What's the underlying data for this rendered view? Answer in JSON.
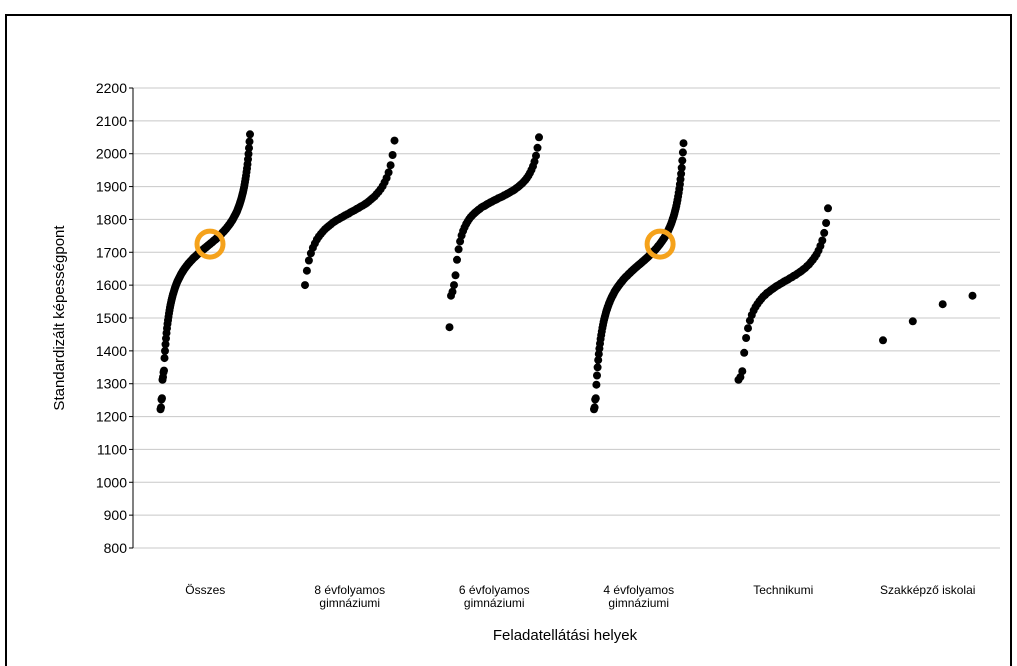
{
  "partial_title": "",
  "chart_data": {
    "type": "scatter",
    "title": "",
    "xlabel": "Feladatellátási helyek",
    "ylabel": "Standardizált képességpont",
    "ylim": [
      800,
      2200
    ],
    "yticks": [
      800,
      900,
      1000,
      1100,
      1200,
      1300,
      1400,
      1500,
      1600,
      1700,
      1800,
      1900,
      2000,
      2100,
      2200
    ],
    "grid": true,
    "highlight_color": "#F5A21B",
    "point_color": "#000000",
    "categories": [
      {
        "label_lines": [
          "Összes"
        ]
      },
      {
        "label_lines": [
          "8 évfolyamos",
          "gimnáziumi"
        ]
      },
      {
        "label_lines": [
          "6 évfolyamos",
          "gimnáziumi"
        ]
      },
      {
        "label_lines": [
          "4 évfolyamos",
          "gimnáziumi"
        ]
      },
      {
        "label_lines": [
          "Technikumi"
        ]
      },
      {
        "label_lines": [
          "Szakképző iskolai"
        ]
      }
    ],
    "series": [
      {
        "category": "Összes",
        "count": 180,
        "min": 1222,
        "max": 2072,
        "low_outliers": [
          1222,
          1228,
          1252,
          1256,
          1312,
          1320,
          1335,
          1340
        ],
        "highlight_value": 1725
      },
      {
        "category": "8 évfolyamos gimnáziumi",
        "count": 46,
        "min": 1570,
        "max": 2070
      },
      {
        "category": "6 évfolyamos gimnáziumi",
        "count": 60,
        "min": 1472,
        "max": 2072,
        "low_outliers": [
          1472,
          1568,
          1580,
          1600,
          1630
        ]
      },
      {
        "category": "4 évfolyamos gimnáziumi",
        "count": 150,
        "min": 1222,
        "max": 2048,
        "low_outliers": [
          1222,
          1228,
          1252,
          1256
        ],
        "highlight_value": 1725
      },
      {
        "category": "Technikumi",
        "count": 48,
        "min": 1312,
        "max": 1865,
        "low_outliers": [
          1312,
          1320,
          1338
        ]
      },
      {
        "category": "Szakképző iskolai",
        "points": [
          1432,
          1490,
          1542,
          1568
        ]
      }
    ]
  }
}
